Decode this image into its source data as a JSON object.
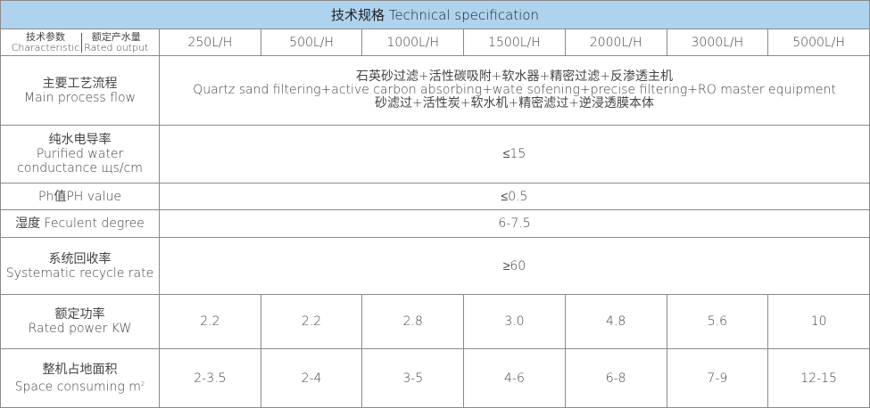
{
  "title": "技术规格 Technical specification",
  "header": {
    "characteristic_cn": "技术参数",
    "characteristic_en": "Characteristic",
    "rated_output_cn": "额定产水量",
    "rated_output_en": "Rated output",
    "capacities": [
      "250L/H",
      "500L/H",
      "1000L/H",
      "1500L/H",
      "2000L/H",
      "3000L/H",
      "5000L/H"
    ]
  },
  "rows": {
    "process": {
      "label_cn": "主要工艺流程",
      "label_en": "Main process flow",
      "line1": "石英砂过滤+活性碳吸附+软水器+精密过滤+反渗透主机",
      "line2": "Quartz sand filtering+active carbon absorbing+wate sofening+precise filtering+RO master equipment",
      "line3": "砂滤过+活性炭+软水机+精密滤过+逆浸透膜本体"
    },
    "conductance": {
      "label_cn": "纯水电导率",
      "label_en1": "Purified water",
      "label_en2": "conductance  щs/cm",
      "value": "≤15"
    },
    "ph": {
      "label": "Ph值PH value",
      "value": "≤0.5"
    },
    "turbidity": {
      "label": "湿度 Feculent degree",
      "value": "6-7.5"
    },
    "recycle": {
      "label_cn": "系统回收率",
      "label_en": "Systematic recycle rate",
      "value": "≥60"
    },
    "power": {
      "label_cn": "额定功率",
      "label_en": "Rated power  KW",
      "values": [
        "2.2",
        "2.2",
        "2.8",
        "3.0",
        "4.8",
        "5.6",
        "10"
      ]
    },
    "space": {
      "label_cn": "整机占地面积",
      "label_en": "Space consuming m",
      "label_sup": "2",
      "values": [
        "2-3.5",
        "2-4",
        "3-5",
        "4-6",
        "6-8",
        "7-9",
        "12-15"
      ]
    }
  }
}
